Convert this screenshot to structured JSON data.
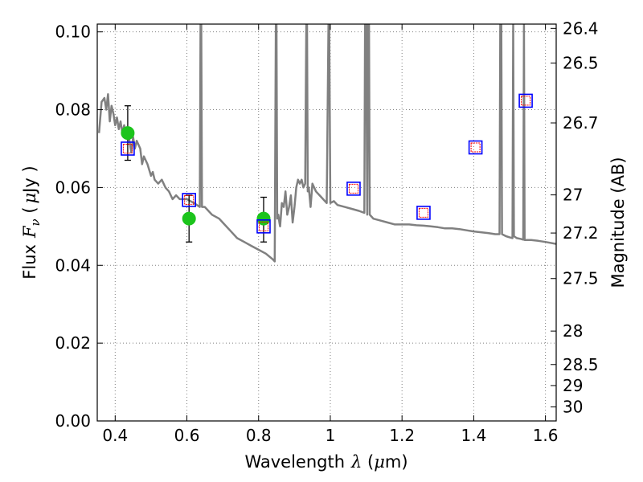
{
  "chart_data": {
    "type": "scatter",
    "xlabel": "Wavelength",
    "xlabel_symbol": "λ",
    "xlabel_unit_open": " (",
    "xlabel_unit_mu": "μ",
    "xlabel_unit_rest": "m)",
    "ylabel_left": "Flux",
    "ylabel_left_symbol": "F",
    "ylabel_left_sub": "ν",
    "ylabel_left_unit_open": " (",
    "ylabel_left_unit_mu": "μ",
    "ylabel_left_unit_rest": "Jy )",
    "ylabel_right": "Magnitude (AB)",
    "xlim": [
      0.35,
      1.63
    ],
    "ylim": [
      0.0,
      0.102
    ],
    "x_ticks": [
      0.4,
      0.6,
      0.8,
      1.0,
      1.2,
      1.4,
      1.6
    ],
    "x_tick_labels": [
      "0.4",
      "0.6",
      "0.8",
      "1",
      "1.2",
      "1.4",
      "1.6"
    ],
    "y_ticks": [
      0.0,
      0.02,
      0.04,
      0.06,
      0.08,
      0.1
    ],
    "y_tick_labels": [
      "0.00",
      "0.02",
      "0.04",
      "0.06",
      "0.08",
      "0.10"
    ],
    "right_ticks": [
      {
        "label": "26.4",
        "flux": 0.1009
      },
      {
        "label": "26.5",
        "flux": 0.092
      },
      {
        "label": "26.7",
        "flux": 0.0766
      },
      {
        "label": "27",
        "flux": 0.0581
      },
      {
        "label": "27.2",
        "flux": 0.0483
      },
      {
        "label": "27.5",
        "flux": 0.0366
      },
      {
        "label": "28",
        "flux": 0.0231
      },
      {
        "label": "28.5",
        "flux": 0.0145
      },
      {
        "label": "29",
        "flux": 0.0091
      },
      {
        "label": "30",
        "flux": 0.0036
      }
    ],
    "colors": {
      "sed_line": "#808080",
      "observed_marker": "#1cc41c",
      "error_bar": "#000000",
      "model_box": "#0000ff",
      "model_box_inner": "#ff0000",
      "grid": "#808080"
    },
    "series": [
      {
        "name": "model SED",
        "type": "line",
        "x": [
          0.355,
          0.362,
          0.37,
          0.375,
          0.38,
          0.385,
          0.39,
          0.395,
          0.4,
          0.405,
          0.41,
          0.415,
          0.42,
          0.425,
          0.43,
          0.435,
          0.44,
          0.445,
          0.45,
          0.455,
          0.46,
          0.465,
          0.47,
          0.475,
          0.48,
          0.49,
          0.5,
          0.505,
          0.51,
          0.52,
          0.53,
          0.54,
          0.55,
          0.56,
          0.57,
          0.58,
          0.6,
          0.62,
          0.636,
          0.638,
          0.64,
          0.642,
          0.65,
          0.67,
          0.69,
          0.7,
          0.72,
          0.74,
          0.76,
          0.78,
          0.8,
          0.82,
          0.84,
          0.845,
          0.848,
          0.85,
          0.852,
          0.855,
          0.858,
          0.86,
          0.865,
          0.87,
          0.875,
          0.88,
          0.885,
          0.89,
          0.895,
          0.9,
          0.905,
          0.91,
          0.915,
          0.92,
          0.925,
          0.93,
          0.933,
          0.935,
          0.937,
          0.94,
          0.945,
          0.95,
          0.96,
          0.97,
          0.98,
          0.99,
          0.995,
          0.997,
          1.0,
          1.01,
          1.02,
          1.04,
          1.06,
          1.08,
          1.095,
          1.097,
          1.1,
          1.103,
          1.105,
          1.108,
          1.11,
          1.115,
          1.12,
          1.14,
          1.16,
          1.18,
          1.2,
          1.22,
          1.24,
          1.26,
          1.28,
          1.3,
          1.32,
          1.34,
          1.36,
          1.38,
          1.4,
          1.42,
          1.44,
          1.46,
          1.472,
          1.474,
          1.477,
          1.479,
          1.49,
          1.5,
          1.508,
          1.51,
          1.512,
          1.52,
          1.53,
          1.538,
          1.54,
          1.542,
          1.56,
          1.58,
          1.6,
          1.63
        ],
        "y": [
          0.074,
          0.082,
          0.083,
          0.08,
          0.084,
          0.077,
          0.081,
          0.079,
          0.076,
          0.078,
          0.075,
          0.077,
          0.074,
          0.076,
          0.073,
          0.075,
          0.072,
          0.069,
          0.073,
          0.07,
          0.072,
          0.071,
          0.07,
          0.066,
          0.068,
          0.066,
          0.063,
          0.064,
          0.062,
          0.061,
          0.062,
          0.06,
          0.059,
          0.057,
          0.058,
          0.057,
          0.057,
          0.056,
          0.055,
          0.102,
          0.102,
          0.055,
          0.055,
          0.053,
          0.052,
          0.051,
          0.049,
          0.047,
          0.046,
          0.045,
          0.044,
          0.043,
          0.0415,
          0.041,
          0.102,
          0.102,
          0.052,
          0.053,
          0.051,
          0.05,
          0.056,
          0.055,
          0.059,
          0.053,
          0.055,
          0.058,
          0.051,
          0.055,
          0.06,
          0.062,
          0.061,
          0.062,
          0.06,
          0.061,
          0.102,
          0.102,
          0.059,
          0.06,
          0.055,
          0.061,
          0.059,
          0.058,
          0.057,
          0.056,
          0.102,
          0.102,
          0.056,
          0.0565,
          0.0555,
          0.055,
          0.0545,
          0.054,
          0.0535,
          0.102,
          0.102,
          0.053,
          0.102,
          0.102,
          0.053,
          0.0525,
          0.052,
          0.0515,
          0.051,
          0.0505,
          0.0505,
          0.0505,
          0.0503,
          0.0502,
          0.05,
          0.0498,
          0.0495,
          0.0495,
          0.0493,
          0.049,
          0.0487,
          0.0485,
          0.0483,
          0.048,
          0.048,
          0.102,
          0.102,
          0.048,
          0.0475,
          0.0472,
          0.047,
          0.102,
          0.0475,
          0.047,
          0.0468,
          0.0466,
          0.102,
          0.0465,
          0.0465,
          0.0463,
          0.046,
          0.0455
        ]
      },
      {
        "name": "observed photometry",
        "type": "errorbar",
        "points": [
          {
            "x": 0.435,
            "y": 0.074,
            "yerr_low": 0.067,
            "yerr_high": 0.081
          },
          {
            "x": 0.606,
            "y": 0.052,
            "yerr_low": 0.046,
            "yerr_high": 0.058
          },
          {
            "x": 0.814,
            "y": 0.052,
            "yerr_low": 0.046,
            "yerr_high": 0.0575
          }
        ]
      },
      {
        "name": "model photometry",
        "type": "box",
        "points": [
          {
            "x": 0.435,
            "y": 0.07
          },
          {
            "x": 0.606,
            "y": 0.0568
          },
          {
            "x": 0.814,
            "y": 0.05
          },
          {
            "x": 1.065,
            "y": 0.0597
          },
          {
            "x": 1.26,
            "y": 0.0535
          },
          {
            "x": 1.405,
            "y": 0.0703
          },
          {
            "x": 1.545,
            "y": 0.0823
          }
        ]
      }
    ]
  }
}
